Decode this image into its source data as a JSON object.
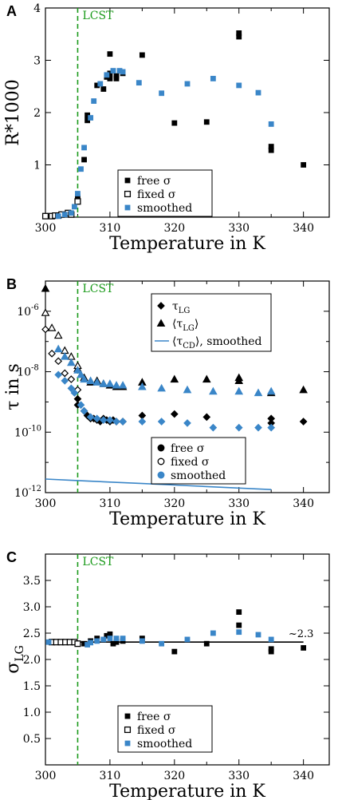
{
  "colors": {
    "free": "#000000",
    "smoothed": "#3a86c8",
    "lcst_line": "#1a9a1a",
    "fit_line": "#000000"
  },
  "chart_data": [
    {
      "panel": "A",
      "type": "scatter",
      "xlabel": "Temperature in K",
      "ylabel": "R*1000",
      "xlim": [
        300,
        344
      ],
      "ylim": [
        0,
        4
      ],
      "xticks": [
        300,
        310,
        320,
        330,
        340
      ],
      "yticks": [
        1,
        2,
        3,
        4
      ],
      "vline": {
        "x": 305,
        "label": "LCST"
      },
      "legend": {
        "position": "lower-center",
        "entries": [
          {
            "series": "free",
            "label": "free σ"
          },
          {
            "series": "fixed",
            "label": "fixed σ"
          },
          {
            "series": "smoothed",
            "label": "smoothed"
          }
        ]
      },
      "series": [
        {
          "name": "free σ",
          "key": "free",
          "marker": "square-filled",
          "points": [
            [
              305,
              0.38
            ],
            [
              305,
              0.3
            ],
            [
              306,
              1.1
            ],
            [
              306.5,
              1.85
            ],
            [
              306.5,
              1.95
            ],
            [
              308,
              2.52
            ],
            [
              309,
              2.45
            ],
            [
              309.5,
              2.68
            ],
            [
              310,
              2.75
            ],
            [
              310,
              3.12
            ],
            [
              310,
              2.65
            ],
            [
              311,
              2.65
            ],
            [
              311,
              2.7
            ],
            [
              312,
              2.75
            ],
            [
              315,
              3.1
            ],
            [
              320,
              1.8
            ],
            [
              325,
              1.82
            ],
            [
              330,
              3.45
            ],
            [
              330,
              3.52
            ],
            [
              335,
              1.35
            ],
            [
              335,
              1.28
            ],
            [
              340,
              1.0
            ]
          ]
        },
        {
          "name": "fixed σ",
          "key": "fixed",
          "marker": "square-open",
          "points": [
            [
              300,
              0.02
            ],
            [
              301,
              0.02
            ],
            [
              301.5,
              0.03
            ],
            [
              302,
              0.03
            ],
            [
              302.5,
              0.05
            ],
            [
              303.5,
              0.08
            ],
            [
              304,
              0.05
            ],
            [
              305,
              0.3
            ]
          ]
        },
        {
          "name": "smoothed",
          "key": "smoothed",
          "marker": "square-filled",
          "points": [
            [
              302,
              0.02
            ],
            [
              303,
              0.05
            ],
            [
              304,
              0.08
            ],
            [
              304.5,
              0.2
            ],
            [
              305,
              0.45
            ],
            [
              305.5,
              0.92
            ],
            [
              306,
              1.33
            ],
            [
              307,
              1.9
            ],
            [
              307.5,
              2.22
            ],
            [
              308.5,
              2.55
            ],
            [
              309.5,
              2.72
            ],
            [
              310.5,
              2.8
            ],
            [
              311.5,
              2.8
            ],
            [
              312,
              2.78
            ],
            [
              314.5,
              2.57
            ],
            [
              318,
              2.37
            ],
            [
              322,
              2.55
            ],
            [
              326,
              2.65
            ],
            [
              330,
              2.52
            ],
            [
              333,
              2.38
            ],
            [
              335,
              1.78
            ]
          ]
        }
      ]
    },
    {
      "panel": "B",
      "type": "scatter",
      "log_y": true,
      "xlabel": "Temperature in K",
      "ylabel": "τ in s",
      "xlim": [
        300,
        344
      ],
      "ylim_log10": [
        -12,
        -5
      ],
      "xticks": [
        300,
        310,
        320,
        330,
        340
      ],
      "yticks_exp": [
        -12,
        -10,
        -8,
        -6
      ],
      "vline": {
        "x": 305,
        "label": "LCST"
      },
      "legend_top": {
        "position": "top-right",
        "entries": [
          {
            "label": "τ",
            "sub": "LG",
            "marker": "diamond"
          },
          {
            "label": "⟨τ",
            "sub": "LG",
            "suffix": "⟩",
            "marker": "triangle"
          },
          {
            "label": "⟨τ",
            "sub": "CD",
            "suffix": "⟩, smoothed",
            "marker": "line"
          }
        ]
      },
      "legend_bottom": {
        "position": "bottom-center",
        "entries": [
          {
            "series": "free",
            "label": "free σ"
          },
          {
            "series": "fixed",
            "label": "fixed σ"
          },
          {
            "series": "smoothed",
            "label": "smoothed"
          }
        ]
      },
      "series": [
        {
          "name": "τ_LG free σ",
          "key": "free",
          "marker": "diamond-filled",
          "points": [
            [
              305,
              -8.9
            ],
            [
              305,
              -9.1
            ],
            [
              306,
              -9.3
            ],
            [
              306.5,
              -9.45
            ],
            [
              307,
              -9.55
            ],
            [
              307.5,
              -9.55
            ],
            [
              308,
              -9.6
            ],
            [
              308.5,
              -9.65
            ],
            [
              309,
              -9.55
            ],
            [
              309.5,
              -9.6
            ],
            [
              310,
              -9.65
            ],
            [
              310.5,
              -9.6
            ],
            [
              311,
              -9.65
            ],
            [
              312,
              -9.65
            ],
            [
              315,
              -9.45
            ],
            [
              320,
              -9.4
            ],
            [
              325,
              -9.5
            ],
            [
              330,
              -10.55
            ],
            [
              330,
              -10.45
            ],
            [
              335,
              -9.7
            ],
            [
              335,
              -9.55
            ],
            [
              340,
              -9.65
            ]
          ]
        },
        {
          "name": "τ_LG fixed σ",
          "key": "fixed",
          "marker": "diamond-open",
          "points": [
            [
              300,
              -6.6
            ],
            [
              301,
              -7.4
            ],
            [
              302,
              -7.65
            ],
            [
              303,
              -8.05
            ],
            [
              304,
              -8.25
            ],
            [
              305,
              -8.6
            ]
          ]
        },
        {
          "name": "τ_LG smoothed",
          "key": "smoothed",
          "marker": "diamond-filled",
          "points": [
            [
              302,
              -8.1
            ],
            [
              303,
              -8.3
            ],
            [
              304,
              -8.55
            ],
            [
              304.5,
              -8.7
            ],
            [
              305.5,
              -9.1
            ],
            [
              306,
              -9.3
            ],
            [
              307,
              -9.5
            ],
            [
              308,
              -9.55
            ],
            [
              309,
              -9.6
            ],
            [
              310,
              -9.6
            ],
            [
              311,
              -9.65
            ],
            [
              312,
              -9.65
            ],
            [
              315,
              -9.65
            ],
            [
              318,
              -9.65
            ],
            [
              322,
              -9.7
            ],
            [
              326,
              -9.85
            ],
            [
              330,
              -9.85
            ],
            [
              333,
              -9.85
            ],
            [
              335,
              -9.85
            ]
          ]
        },
        {
          "name": "⟨τ_LG⟩ free σ",
          "key": "free",
          "marker": "triangle-filled",
          "points": [
            [
              300,
              -5.25
            ],
            [
              305,
              -7.9
            ],
            [
              306,
              -8.2
            ],
            [
              307,
              -8.35
            ],
            [
              308,
              -8.3
            ],
            [
              309,
              -8.4
            ],
            [
              310,
              -8.45
            ],
            [
              311,
              -8.5
            ],
            [
              312,
              -8.5
            ],
            [
              315,
              -8.35
            ],
            [
              320,
              -8.25
            ],
            [
              325,
              -8.25
            ],
            [
              330,
              -8.3
            ],
            [
              330,
              -8.2
            ],
            [
              335,
              -8.7
            ],
            [
              340,
              -8.6
            ]
          ]
        },
        {
          "name": "⟨τ_LG⟩ fixed σ",
          "key": "fixed",
          "marker": "triangle-open",
          "points": [
            [
              300,
              -6.05
            ],
            [
              301,
              -6.55
            ],
            [
              302,
              -6.8
            ],
            [
              303,
              -7.3
            ],
            [
              304,
              -7.5
            ],
            [
              305,
              -7.8
            ]
          ]
        },
        {
          "name": "⟨τ_LG⟩ smoothed",
          "key": "smoothed",
          "marker": "triangle-filled",
          "points": [
            [
              302,
              -7.25
            ],
            [
              303,
              -7.5
            ],
            [
              304,
              -7.7
            ],
            [
              305,
              -7.95
            ],
            [
              305.5,
              -8.1
            ],
            [
              306,
              -8.25
            ],
            [
              307,
              -8.3
            ],
            [
              308,
              -8.35
            ],
            [
              309,
              -8.4
            ],
            [
              310,
              -8.4
            ],
            [
              311,
              -8.45
            ],
            [
              312,
              -8.45
            ],
            [
              315,
              -8.5
            ],
            [
              318,
              -8.55
            ],
            [
              322,
              -8.6
            ],
            [
              326,
              -8.65
            ],
            [
              330,
              -8.65
            ],
            [
              333,
              -8.7
            ],
            [
              335,
              -8.65
            ]
          ]
        },
        {
          "name": "⟨τ_CD⟩, smoothed",
          "key": "smoothed",
          "marker": "line",
          "points": [
            [
              300,
              -11.55
            ],
            [
              305,
              -11.6
            ],
            [
              310,
              -11.65
            ],
            [
              315,
              -11.7
            ],
            [
              320,
              -11.75
            ],
            [
              325,
              -11.8
            ],
            [
              330,
              -11.85
            ],
            [
              335,
              -11.9
            ]
          ]
        }
      ]
    },
    {
      "panel": "C",
      "type": "scatter",
      "xlabel": "Temperature in K",
      "ylabel": "σ",
      "ylabel_sub": "LG",
      "xlim": [
        300,
        344
      ],
      "ylim": [
        0,
        4
      ],
      "xticks": [
        300,
        310,
        320,
        330,
        340
      ],
      "yticks": [
        0.5,
        1,
        1.5,
        2,
        2.5,
        3,
        3.5
      ],
      "ytick_labels": [
        "0.5",
        "1.0",
        "1.5",
        "2.0",
        "2.5",
        "3.0",
        "3.5"
      ],
      "vline": {
        "x": 305,
        "label": "LCST"
      },
      "hline": {
        "y": 2.33,
        "x_from": 301,
        "x_to": 340,
        "label": "~2.3"
      },
      "legend": {
        "position": "lower-center",
        "entries": [
          {
            "series": "free",
            "label": "free σ"
          },
          {
            "series": "fixed",
            "label": "fixed σ"
          },
          {
            "series": "smoothed",
            "label": "smoothed"
          }
        ]
      },
      "series": [
        {
          "name": "free σ",
          "key": "free",
          "marker": "square-filled",
          "points": [
            [
              306,
              2.3
            ],
            [
              307,
              2.35
            ],
            [
              308,
              2.4
            ],
            [
              309,
              2.38
            ],
            [
              309.5,
              2.45
            ],
            [
              310,
              2.48
            ],
            [
              310.5,
              2.3
            ],
            [
              311,
              2.33
            ],
            [
              312,
              2.35
            ],
            [
              315,
              2.4
            ],
            [
              320,
              2.15
            ],
            [
              325,
              2.3
            ],
            [
              330,
              2.9
            ],
            [
              330,
              2.65
            ],
            [
              335,
              2.2
            ],
            [
              335,
              2.15
            ],
            [
              340,
              2.22
            ]
          ]
        },
        {
          "name": "fixed σ",
          "key": "fixed",
          "marker": "square-open",
          "points": [
            [
              301,
              2.33
            ],
            [
              301.7,
              2.33
            ],
            [
              302.4,
              2.33
            ],
            [
              303.1,
              2.33
            ],
            [
              303.8,
              2.33
            ],
            [
              304.5,
              2.33
            ],
            [
              305,
              2.3
            ]
          ]
        },
        {
          "name": "smoothed",
          "key": "smoothed",
          "marker": "square-filled",
          "points": [
            [
              300.5,
              2.33
            ],
            [
              306.5,
              2.28
            ],
            [
              307,
              2.32
            ],
            [
              308,
              2.35
            ],
            [
              309,
              2.38
            ],
            [
              310,
              2.4
            ],
            [
              311,
              2.4
            ],
            [
              312,
              2.4
            ],
            [
              315,
              2.35
            ],
            [
              318,
              2.3
            ],
            [
              322,
              2.38
            ],
            [
              326,
              2.5
            ],
            [
              330,
              2.52
            ],
            [
              333,
              2.47
            ],
            [
              335,
              2.38
            ]
          ]
        }
      ]
    }
  ]
}
